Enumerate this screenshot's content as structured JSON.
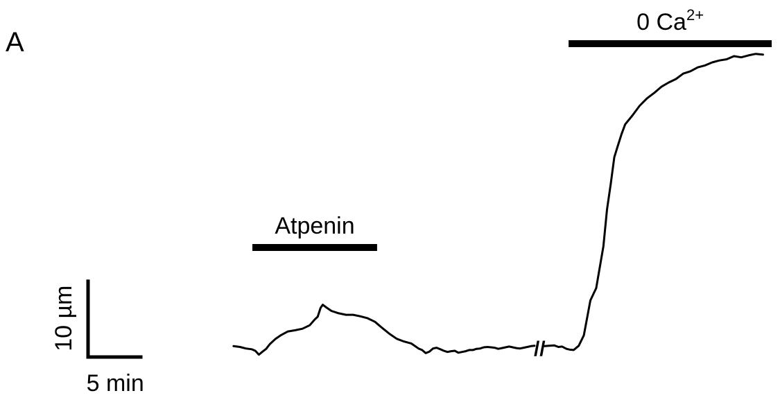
{
  "panel_label": "A",
  "colors": {
    "trace": "#000000",
    "background": "#ffffff"
  },
  "chart_data": {
    "type": "line",
    "title": "",
    "xlabel": "",
    "ylabel": "",
    "grid": false,
    "legend": "none",
    "axes_visible": false,
    "segments": [
      {
        "name": "",
        "x": [
          0,
          0.9,
          1.7,
          2.5,
          3.0,
          3.5,
          4.0,
          4.5,
          5.0,
          5.8,
          6.5,
          7.5,
          8.5,
          9.5,
          10.5,
          11.2,
          11.6,
          12.0,
          12.3,
          12.8,
          13.5,
          14.5,
          15.5,
          16.5,
          17.5,
          18.5,
          19.5,
          20.5,
          21.5,
          22.5,
          23.5,
          24.5,
          25.5,
          26.0,
          26.5,
          27.0,
          27.5,
          28.0,
          28.5,
          29.0,
          29.5,
          30.0,
          30.5,
          31.0,
          31.5,
          32.0,
          32.5,
          33.0,
          33.5,
          34.0,
          34.5,
          35.0,
          35.5,
          36.0,
          36.5,
          37.0,
          37.5,
          38.0,
          38.5,
          39.0,
          39.5,
          40.0,
          40.5,
          41.0,
          41.5
        ],
        "y": [
          0.2,
          0.0,
          -0.4,
          -0.6,
          -1.0,
          -2.0,
          -1.2,
          -0.5,
          0.7,
          2.1,
          3.0,
          4.0,
          4.3,
          4.7,
          5.6,
          7.1,
          7.8,
          10.1,
          10.9,
          10.2,
          9.3,
          8.7,
          8.3,
          8.3,
          7.9,
          7.4,
          6.5,
          4.9,
          3.4,
          2.1,
          1.4,
          0.9,
          -0.4,
          -0.8,
          -1.6,
          -1.2,
          -0.4,
          -0.2,
          -0.6,
          -1.0,
          -1.3,
          -1.1,
          -1.0,
          -1.5,
          -1.3,
          -1.1,
          -0.8,
          -0.8,
          -0.5,
          -0.4,
          -0.1,
          0.0,
          -0.1,
          -0.2,
          -0.5,
          -0.3,
          -0.1,
          0.1,
          -0.1,
          -0.3,
          -0.4,
          -0.2,
          0.0,
          0.2,
          0.3
        ]
      },
      {
        "name": "",
        "x": [
          42.9,
          43.5,
          44.2,
          44.8,
          45.3,
          45.9,
          46.4,
          46.9,
          47.6,
          48.3,
          49.2,
          50.0,
          51.0,
          51.5,
          52.0,
          52.5,
          53.0,
          53.5,
          54.0,
          55.0,
          56.0,
          57.0,
          58.0,
          59.0,
          60.0,
          61.0,
          62.0,
          63.0,
          64.0,
          65.0,
          66.0,
          67.0,
          68.0,
          69.0,
          70.0,
          71.0,
          72.0,
          73.0
        ],
        "y": [
          0.2,
          0.3,
          0.4,
          0.0,
          0.1,
          -0.5,
          -0.7,
          -0.8,
          0.3,
          3.0,
          12.0,
          15.2,
          26.0,
          35.5,
          42.0,
          49.0,
          52.0,
          55.0,
          57.5,
          59.8,
          62.3,
          64.2,
          65.6,
          67.2,
          68.3,
          69.2,
          70.6,
          71.2,
          72.2,
          72.7,
          73.5,
          74.0,
          74.3,
          75.1,
          74.8,
          75.3,
          75.7,
          75.5
        ]
      }
    ],
    "axis_break_label": "//",
    "bars": [
      {
        "label": "Atpenin",
        "x_start": 2.6,
        "x_end": 19.8
      },
      {
        "label": "0 Ca",
        "superscript": "2+",
        "x_start": 46.2,
        "x_end": 74.2
      }
    ],
    "scale_bar": {
      "x_label": "5 min",
      "x_value": 7.5,
      "y_label": "10 µm",
      "y_value": 20
    },
    "xlim": [
      -8.3,
      74.2
    ],
    "ylim": [
      -3.5,
      76
    ]
  }
}
